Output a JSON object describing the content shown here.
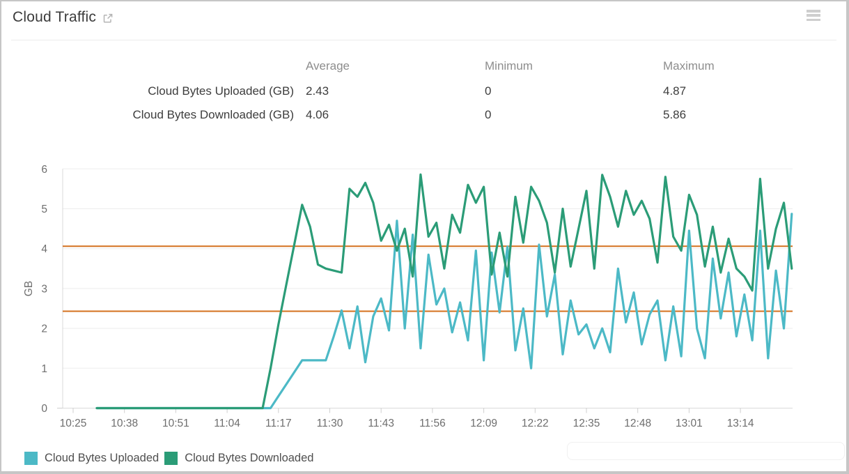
{
  "panel": {
    "title": "Cloud Traffic"
  },
  "header_icons": {
    "external_link": "external-link-icon",
    "menu": "menu-icon"
  },
  "stats": {
    "columns": [
      "Average",
      "Minimum",
      "Maximum"
    ],
    "rows": [
      {
        "label": "Cloud Bytes Uploaded (GB)",
        "average": "2.43",
        "minimum": "0",
        "maximum": "4.87"
      },
      {
        "label": "Cloud Bytes Downloaded (GB)",
        "average": "4.06",
        "minimum": "0",
        "maximum": "5.86"
      }
    ]
  },
  "legend": {
    "items": [
      {
        "label": "Cloud Bytes Uploaded",
        "color": "#4cb9c6"
      },
      {
        "label": "Cloud Bytes Downloaded",
        "color": "#2b9c77"
      }
    ]
  },
  "chart_data": {
    "type": "line",
    "title": "Cloud Traffic",
    "xlabel": "",
    "ylabel": "GB",
    "ylim": [
      0,
      6
    ],
    "yticks": [
      0,
      1,
      2,
      3,
      4,
      5,
      6
    ],
    "grid": "horizontal",
    "legend_position": "bottom-left",
    "x_tick_labels": [
      "10:25",
      "10:38",
      "10:51",
      "11:04",
      "11:17",
      "11:30",
      "11:43",
      "11:56",
      "12:09",
      "12:22",
      "12:35",
      "12:48",
      "13:01",
      "13:14"
    ],
    "x_tick_interval_minutes": 13,
    "x_start_label": "10:25",
    "sample_start_minutes": 6,
    "sample_step_minutes": 2,
    "reference_lines": [
      {
        "name": "downloaded-average",
        "value": 4.06,
        "color": "#d4701e"
      },
      {
        "name": "uploaded-average",
        "value": 2.43,
        "color": "#d4701e"
      }
    ],
    "series": [
      {
        "name": "Cloud Bytes Uploaded",
        "color": "#4cb9c6",
        "stats": {
          "average": 2.43,
          "minimum": 0,
          "maximum": 4.87
        },
        "values": [
          0,
          0,
          0,
          0,
          0,
          0,
          0,
          0,
          0,
          0,
          0,
          0,
          0,
          0,
          0,
          0,
          0,
          0,
          0,
          0,
          0,
          0,
          0,
          0.3,
          0.6,
          0.9,
          1.2,
          1.2,
          1.2,
          1.2,
          1.8,
          2.45,
          1.5,
          2.55,
          1.15,
          2.3,
          2.75,
          1.95,
          4.7,
          2.0,
          4.35,
          1.5,
          3.85,
          2.6,
          3.0,
          1.9,
          2.65,
          1.7,
          3.95,
          1.2,
          3.9,
          2.4,
          4.05,
          1.45,
          2.5,
          1.0,
          4.1,
          2.3,
          3.35,
          1.35,
          2.7,
          1.85,
          2.1,
          1.5,
          2.0,
          1.4,
          3.5,
          2.15,
          2.9,
          1.6,
          2.35,
          2.7,
          1.2,
          2.55,
          1.3,
          4.45,
          2.0,
          1.25,
          3.75,
          2.25,
          3.4,
          1.8,
          2.85,
          1.7,
          4.45,
          1.25,
          3.45,
          2.0,
          4.87
        ]
      },
      {
        "name": "Cloud Bytes Downloaded",
        "color": "#2b9c77",
        "stats": {
          "average": 4.06,
          "minimum": 0,
          "maximum": 5.86
        },
        "values": [
          0,
          0,
          0,
          0,
          0,
          0,
          0,
          0,
          0,
          0,
          0,
          0,
          0,
          0,
          0,
          0,
          0,
          0,
          0,
          0,
          0,
          0,
          1.0,
          2.1,
          3.1,
          4.1,
          5.1,
          4.55,
          3.6,
          3.5,
          3.45,
          3.4,
          5.5,
          5.3,
          5.65,
          5.15,
          4.2,
          4.6,
          3.95,
          4.5,
          3.3,
          5.86,
          4.3,
          4.65,
          3.5,
          4.85,
          4.4,
          5.6,
          5.15,
          5.55,
          3.35,
          4.4,
          3.3,
          5.3,
          4.15,
          5.55,
          5.2,
          4.65,
          3.4,
          5.0,
          3.55,
          4.5,
          5.45,
          3.5,
          5.85,
          5.3,
          4.55,
          5.45,
          4.85,
          5.2,
          4.75,
          3.65,
          5.8,
          4.3,
          3.95,
          5.35,
          4.85,
          3.55,
          4.55,
          3.4,
          4.25,
          3.5,
          3.3,
          2.95,
          5.75,
          3.5,
          4.5,
          5.15,
          3.5
        ]
      }
    ]
  }
}
